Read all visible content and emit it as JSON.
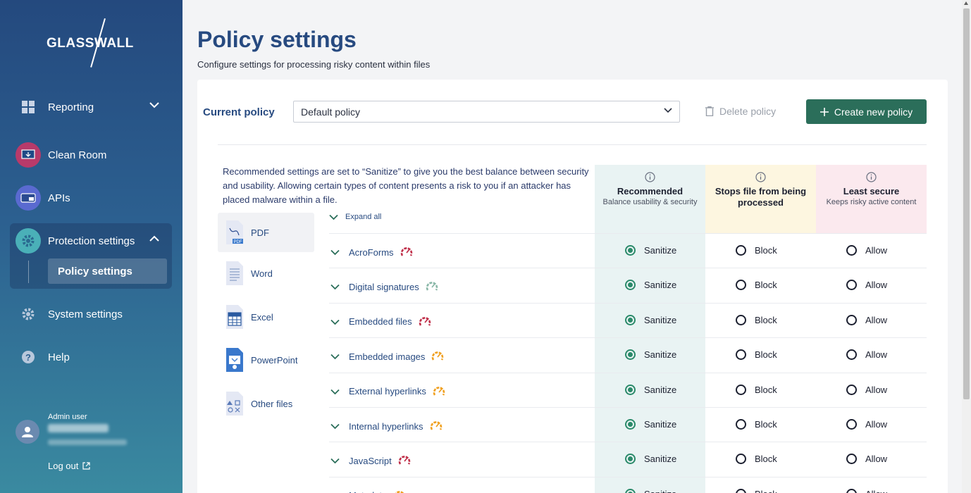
{
  "sidebar": {
    "logo_text": "GLASSWALL",
    "items": [
      {
        "label": "Reporting",
        "icon": "grid-icon"
      },
      {
        "label": "Clean Room",
        "icon": "monitor-download-icon"
      },
      {
        "label": "APIs",
        "icon": "api-card-icon"
      },
      {
        "label": "Protection settings",
        "icon": "gear-icon"
      },
      {
        "label": "System settings",
        "icon": "gear-icon"
      },
      {
        "label": "Help",
        "icon": "question-icon"
      }
    ],
    "sub_item": "Policy settings",
    "admin_role": "Admin user",
    "logout": "Log out"
  },
  "header": {
    "title": "Policy settings",
    "subtitle": "Configure settings for processing risky content within files"
  },
  "policy": {
    "label": "Current policy",
    "selected": "Default policy",
    "delete_label": "Delete policy",
    "create_label": "Create new policy"
  },
  "intro": "Recommended settings are set to “Sanitize” to give you the best balance between security and usability. Allowing certain types of content presents a risk to you if an attacker has placed malware within a file.",
  "file_types": [
    "PDF",
    "Word",
    "Excel",
    "PowerPoint",
    "Other files"
  ],
  "columns": {
    "recommended": {
      "title": "Recommended",
      "desc": "Balance usability & security"
    },
    "block": {
      "title": "Stops file from being processed"
    },
    "allow": {
      "title": "Least secure",
      "desc": "Keeps risky active content"
    }
  },
  "expand_all": "Expand all",
  "options": {
    "sanitize": "Sanitize",
    "block": "Block",
    "allow": "Allow"
  },
  "rows": [
    {
      "label": "AcroForms",
      "risk": "high"
    },
    {
      "label": "Digital signatures",
      "risk": "low"
    },
    {
      "label": "Embedded files",
      "risk": "high"
    },
    {
      "label": "Embedded images",
      "risk": "medium"
    },
    {
      "label": "External hyperlinks",
      "risk": "medium"
    },
    {
      "label": "Internal hyperlinks",
      "risk": "medium"
    },
    {
      "label": "JavaScript",
      "risk": "high"
    },
    {
      "label": "Metadata",
      "risk": "medium"
    }
  ],
  "colors": {
    "accent": "#2b6e5a",
    "title": "#274a80",
    "high_risk": "#c0304a",
    "medium_risk": "#f0a020",
    "low_risk": "#8ab8a8"
  }
}
